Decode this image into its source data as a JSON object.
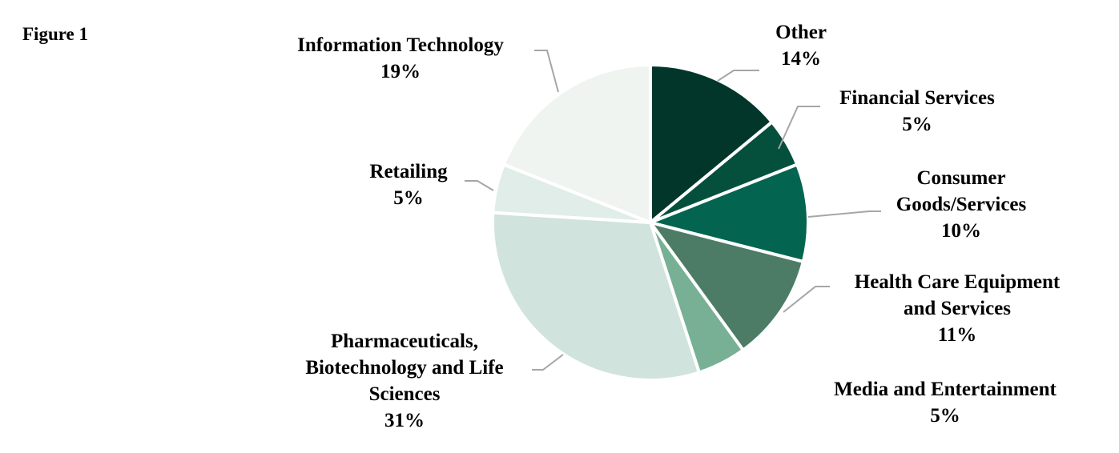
{
  "figure_label": "Figure 1",
  "chart_data": {
    "type": "pie",
    "start_angle_deg": 0,
    "direction": "clockwise",
    "slices": [
      {
        "label": "Other",
        "label_lines": [
          "Other"
        ],
        "value": 14,
        "value_label": "14%",
        "color": "#02362a"
      },
      {
        "label": "Financial Services",
        "label_lines": [
          "Financial Services"
        ],
        "value": 5,
        "value_label": "5%",
        "color": "#04503d"
      },
      {
        "label": "Consumer Goods/Services",
        "label_lines": [
          "Consumer",
          "Goods/Services"
        ],
        "value": 10,
        "value_label": "10%",
        "color": "#036550"
      },
      {
        "label": "Health Care Equipment and Services",
        "label_lines": [
          "Health Care Equipment",
          "and Services"
        ],
        "value": 11,
        "value_label": "11%",
        "color": "#4c7c66"
      },
      {
        "label": "Media and Entertainment",
        "label_lines": [
          "Media and Entertainment"
        ],
        "value": 5,
        "value_label": "5%",
        "color": "#77b095"
      },
      {
        "label": "Pharmaceuticals, Biotechnology and Life Sciences",
        "label_lines": [
          "Pharmaceuticals,",
          "Biotechnology and Life",
          "Sciences"
        ],
        "value": 31,
        "value_label": "31%",
        "color": "#d0e3dc"
      },
      {
        "label": "Retailing",
        "label_lines": [
          "Retailing"
        ],
        "value": 5,
        "value_label": "5%",
        "color": "#e0ede8"
      },
      {
        "label": "Information Technology",
        "label_lines": [
          "Information Technology"
        ],
        "value": 19,
        "value_label": "19%",
        "color": "#eff4f1"
      }
    ]
  }
}
